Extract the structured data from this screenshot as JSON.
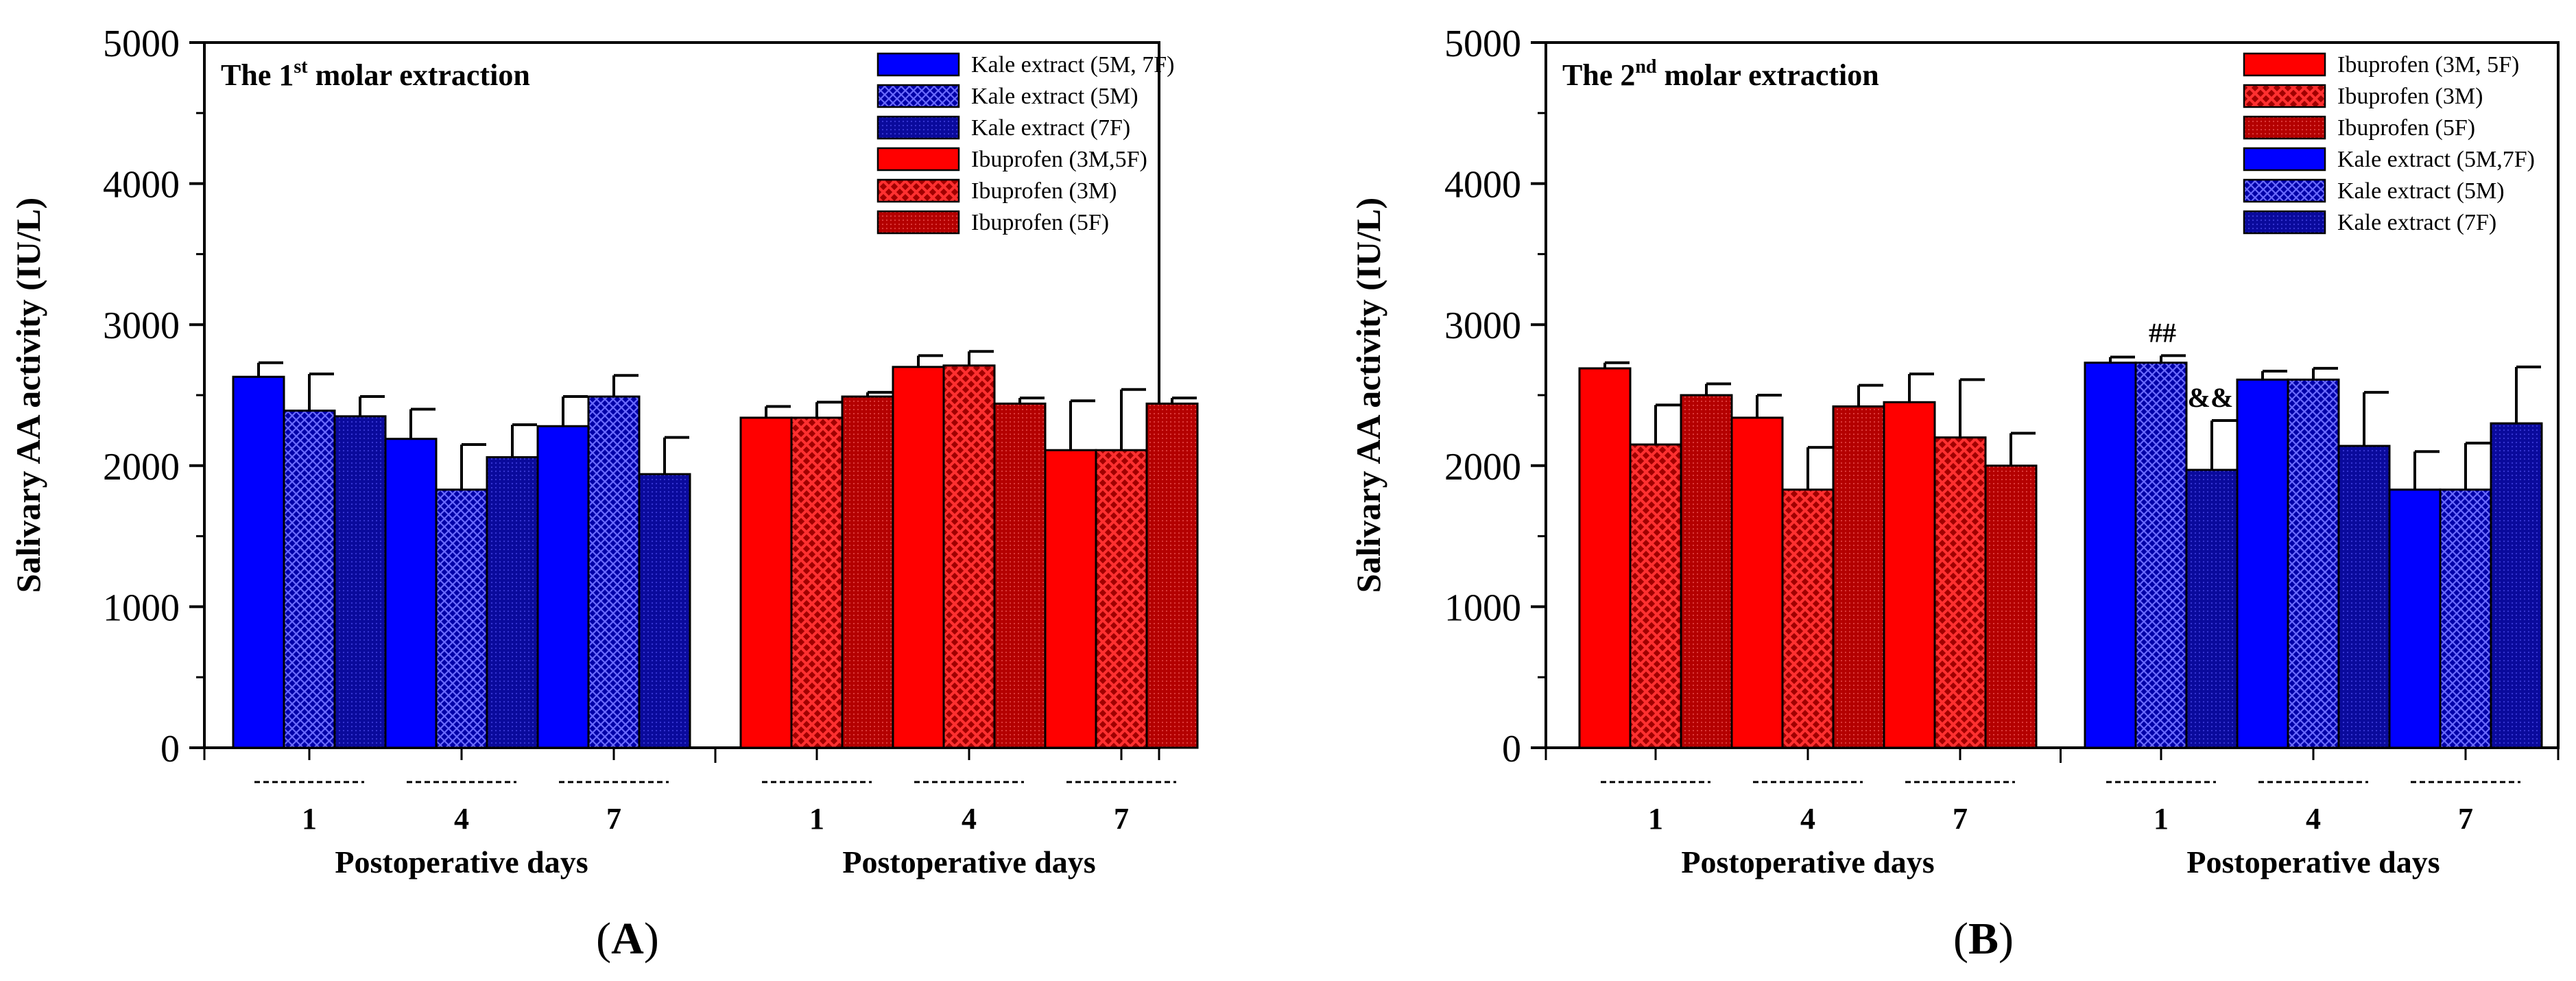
{
  "colors": {
    "kale_blue": "#0000ff",
    "kale_dark": "#0000a8",
    "ibu_red": "#ff0000",
    "ibu_dark": "#c00000",
    "axis": "#000000"
  },
  "chart_data": [
    {
      "type": "bar",
      "panel_label": "A",
      "title_prefix": "The 1",
      "title_sup": "st",
      "title_suffix": " molar extraction",
      "ylabel": "Salivary AA activity (IU/L)",
      "ylim": [
        0,
        5000
      ],
      "yticks": [
        0,
        1000,
        2000,
        3000,
        4000,
        5000
      ],
      "legend_position": "top-right",
      "legend": [
        {
          "label": "Kale extract (5M, 7F)",
          "pattern": "solid-blue"
        },
        {
          "label": "Kale extract (5M)",
          "pattern": "cross-blue"
        },
        {
          "label": "Kale extract (7F)",
          "pattern": "dark-blue"
        },
        {
          "label": "Ibuprofen (3M,5F)",
          "pattern": "solid-red"
        },
        {
          "label": "Ibuprofen (3M)",
          "pattern": "cross-red"
        },
        {
          "label": "Ibuprofen (5F)",
          "pattern": "dark-red"
        }
      ],
      "groups": [
        {
          "xlabel": "Postoperative days",
          "categories": [
            "1",
            "4",
            "7"
          ],
          "series": [
            {
              "name": "Kale extract (5M, 7F)",
              "pattern": "solid-blue",
              "values": [
                2630,
                2190,
                2280
              ],
              "errors": [
                100,
                210,
                210
              ]
            },
            {
              "name": "Kale extract (5M)",
              "pattern": "cross-blue",
              "values": [
                2390,
                1830,
                2490
              ],
              "errors": [
                260,
                320,
                150
              ]
            },
            {
              "name": "Kale extract (7F)",
              "pattern": "dark-blue",
              "values": [
                2350,
                2060,
                1940
              ],
              "errors": [
                140,
                230,
                260
              ]
            }
          ]
        },
        {
          "xlabel": "Postoperative days",
          "categories": [
            "1",
            "4",
            "7"
          ],
          "series": [
            {
              "name": "Ibuprofen (3M,5F)",
              "pattern": "solid-red",
              "values": [
                2340,
                2700,
                2110
              ],
              "errors": [
                80,
                80,
                350
              ]
            },
            {
              "name": "Ibuprofen (3M)",
              "pattern": "cross-red",
              "values": [
                2340,
                2710,
                2110
              ],
              "errors": [
                110,
                100,
                430
              ]
            },
            {
              "name": "Ibuprofen (5F)",
              "pattern": "dark-red",
              "values": [
                2490,
                2440,
                2440
              ],
              "errors": [
                30,
                40,
                40
              ]
            }
          ]
        }
      ],
      "annotations": []
    },
    {
      "type": "bar",
      "panel_label": "B",
      "title_prefix": "The 2",
      "title_sup": "nd",
      "title_suffix": " molar extraction",
      "ylabel": "Salivary AA activity (IU/L)",
      "ylim": [
        0,
        5000
      ],
      "yticks": [
        0,
        1000,
        2000,
        3000,
        4000,
        5000
      ],
      "legend_position": "top-right",
      "legend": [
        {
          "label": "Ibuprofen (3M, 5F)",
          "pattern": "solid-red"
        },
        {
          "label": "Ibuprofen (3M)",
          "pattern": "cross-red"
        },
        {
          "label": "Ibuprofen (5F)",
          "pattern": "dark-red"
        },
        {
          "label": "Kale extract (5M,7F)",
          "pattern": "solid-blue"
        },
        {
          "label": "Kale extract (5M)",
          "pattern": "cross-blue"
        },
        {
          "label": "Kale extract (7F)",
          "pattern": "dark-blue"
        }
      ],
      "groups": [
        {
          "xlabel": "Postoperative days",
          "categories": [
            "1",
            "4",
            "7"
          ],
          "series": [
            {
              "name": "Ibuprofen (3M, 5F)",
              "pattern": "solid-red",
              "values": [
                2690,
                2340,
                2450
              ],
              "errors": [
                40,
                160,
                200
              ]
            },
            {
              "name": "Ibuprofen (3M)",
              "pattern": "cross-red",
              "values": [
                2150,
                1830,
                2200
              ],
              "errors": [
                280,
                300,
                410
              ]
            },
            {
              "name": "Ibuprofen (5F)",
              "pattern": "dark-red",
              "values": [
                2500,
                2420,
                2000
              ],
              "errors": [
                80,
                150,
                230
              ]
            }
          ]
        },
        {
          "xlabel": "Postoperative days",
          "categories": [
            "1",
            "4",
            "7"
          ],
          "series": [
            {
              "name": "Kale extract (5M,7F)",
              "pattern": "solid-blue",
              "values": [
                2730,
                2610,
                1830
              ],
              "errors": [
                40,
                60,
                270
              ]
            },
            {
              "name": "Kale extract (5M)",
              "pattern": "cross-blue",
              "values": [
                2730,
                2610,
                1830
              ],
              "errors": [
                50,
                80,
                330
              ]
            },
            {
              "name": "Kale extract (7F)",
              "pattern": "dark-blue",
              "values": [
                1970,
                2140,
                2300
              ],
              "errors": [
                350,
                380,
                400
              ]
            }
          ]
        }
      ],
      "annotations": [
        {
          "text": "##",
          "group": 1,
          "category": 0,
          "series": 1
        },
        {
          "text": "&&",
          "group": 1,
          "category": 0,
          "series": 2
        }
      ]
    }
  ]
}
